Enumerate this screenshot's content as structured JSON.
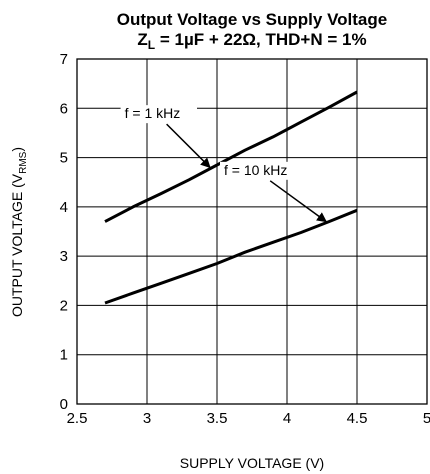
{
  "chart_data": {
    "type": "line",
    "title": "Output Voltage vs Supply Voltage",
    "subtitle": {
      "prefix": "Z",
      "sub": "L",
      "rest": " = 1µF + 22Ω, THD+N = 1%"
    },
    "xlabel": "SUPPLY VOLTAGE (V)",
    "ylabel": {
      "prefix": "OUTPUT VOLTAGE (V",
      "sub": "RMS",
      "suffix": ")"
    },
    "xlim": [
      2.5,
      5
    ],
    "ylim": [
      0,
      7
    ],
    "xticks": [
      "2.5",
      "3",
      "3.5",
      "4",
      "4.5",
      "5"
    ],
    "yticks": [
      "0",
      "1",
      "2",
      "3",
      "4",
      "5",
      "6",
      "7"
    ],
    "grid": true,
    "series": [
      {
        "name": "f = 1 kHz",
        "x": [
          2.7,
          2.9,
          3.1,
          3.3,
          3.5,
          3.7,
          3.9,
          4.1,
          4.3,
          4.5
        ],
        "y": [
          3.7,
          4.0,
          4.27,
          4.55,
          4.85,
          5.15,
          5.42,
          5.72,
          6.02,
          6.33
        ]
      },
      {
        "name": "f = 10 kHz",
        "x": [
          2.7,
          2.9,
          3.1,
          3.3,
          3.5,
          3.7,
          3.9,
          4.1,
          4.3,
          4.5
        ],
        "y": [
          2.05,
          2.25,
          2.45,
          2.65,
          2.85,
          3.08,
          3.28,
          3.48,
          3.7,
          3.93
        ]
      }
    ],
    "annotations": [
      {
        "label": "f = 1 kHz",
        "series": 0,
        "text_at": [
          2.84,
          5.8
        ],
        "arrow_to": [
          3.45,
          4.8
        ]
      },
      {
        "label": "f = 10 kHz",
        "series": 1,
        "text_at": [
          3.55,
          4.65
        ],
        "arrow_to": [
          4.28,
          3.7
        ]
      }
    ]
  }
}
